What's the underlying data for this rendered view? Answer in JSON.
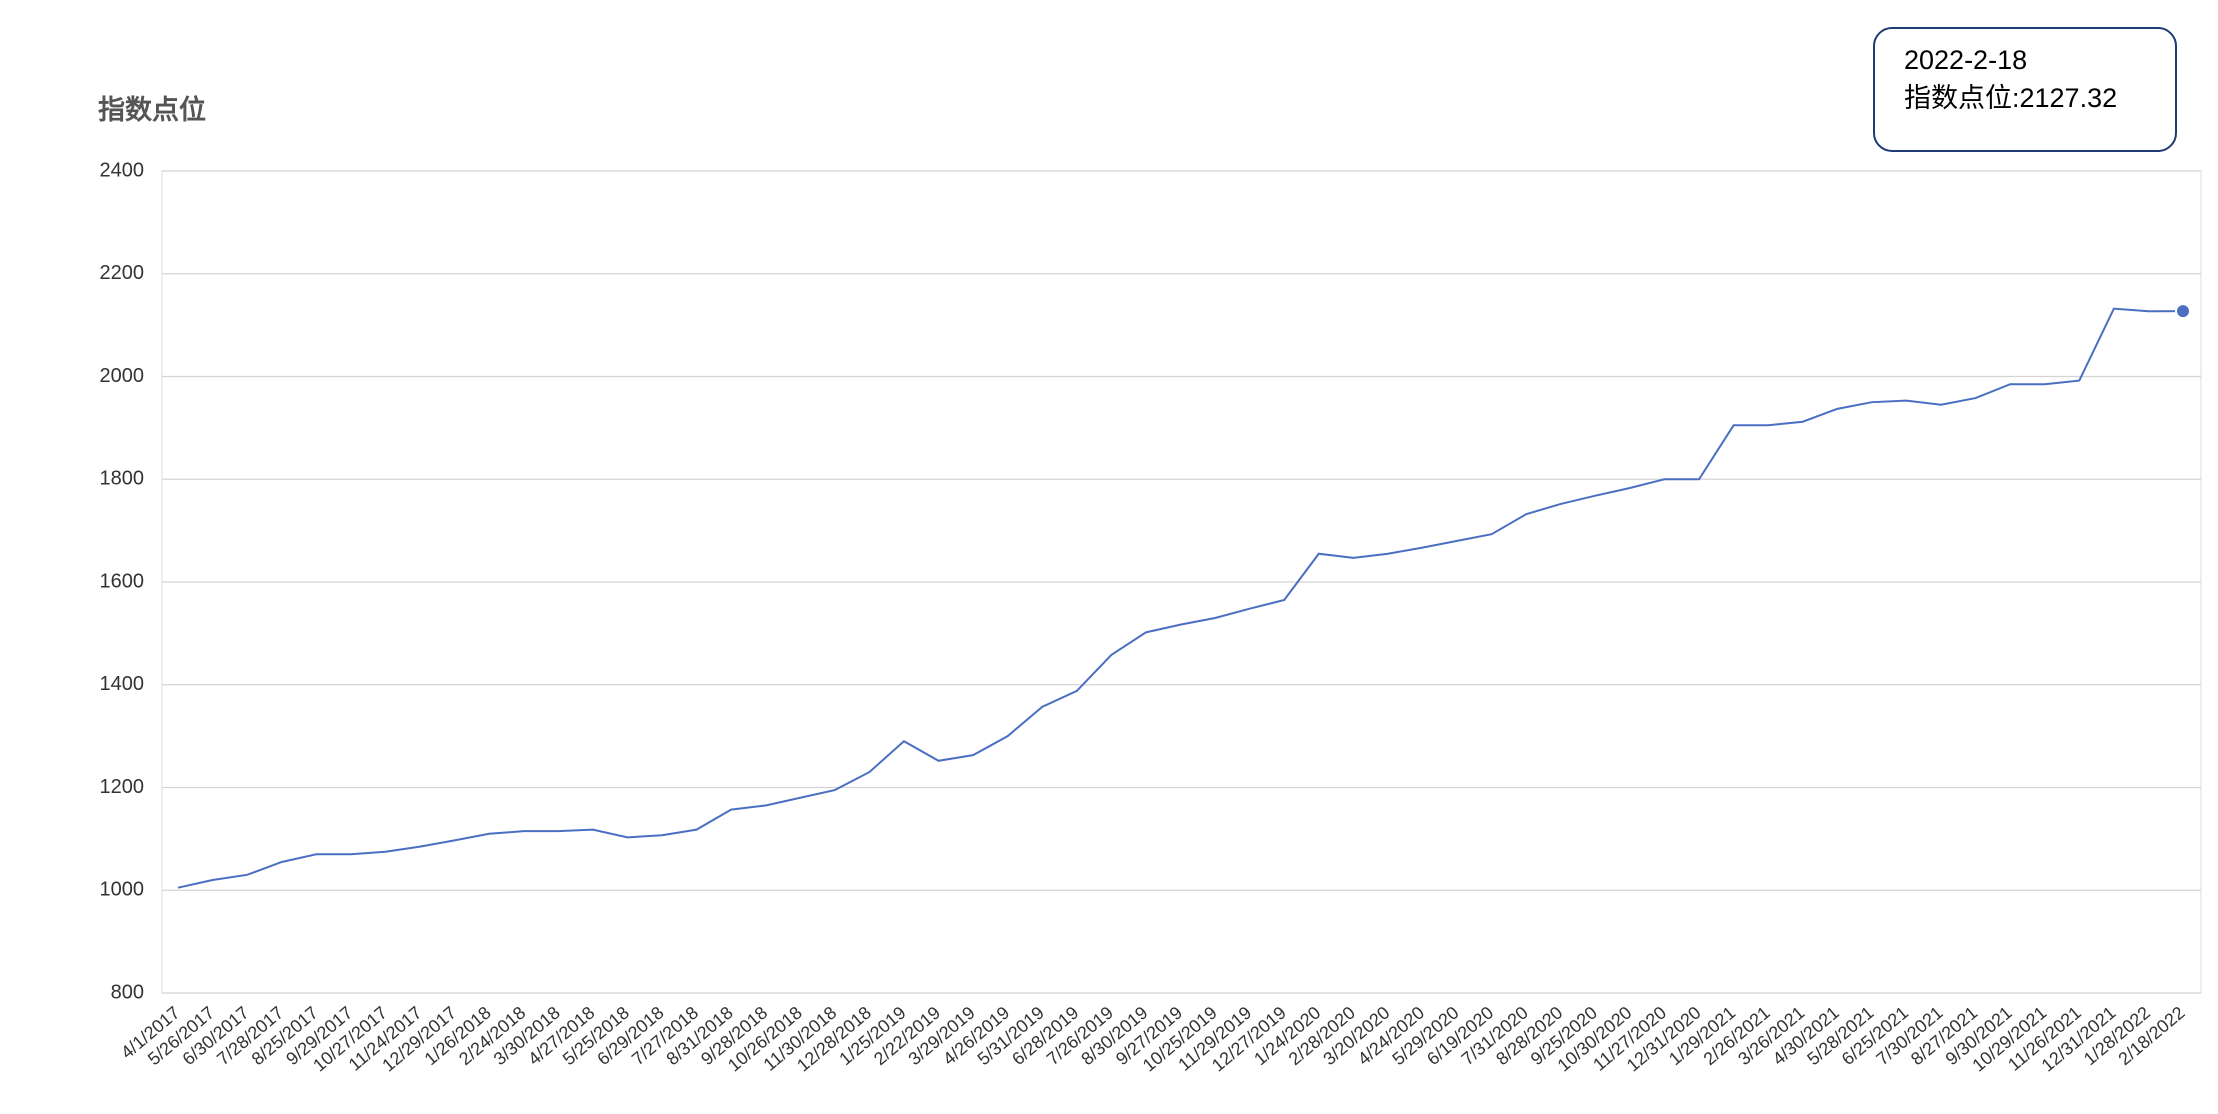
{
  "chart_data": {
    "type": "line",
    "y_label": "指数点位",
    "categories": [
      "4/1/2017",
      "5/26/2017",
      "6/30/2017",
      "7/28/2017",
      "8/25/2017",
      "9/29/2017",
      "10/27/2017",
      "11/24/2017",
      "12/29/2017",
      "1/26/2018",
      "2/24/2018",
      "3/30/2018",
      "4/27/2018",
      "5/25/2018",
      "6/29/2018",
      "7/27/2018",
      "8/31/2018",
      "9/28/2018",
      "10/26/2018",
      "11/30/2018",
      "12/28/2018",
      "1/25/2019",
      "2/22/2019",
      "3/29/2019",
      "4/26/2019",
      "5/31/2019",
      "6/28/2019",
      "7/26/2019",
      "8/30/2019",
      "9/27/2019",
      "10/25/2019",
      "11/29/2019",
      "12/27/2019",
      "1/24/2020",
      "2/28/2020",
      "3/20/2020",
      "4/24/2020",
      "5/29/2020",
      "6/19/2020",
      "7/31/2020",
      "8/28/2020",
      "9/25/2020",
      "10/30/2020",
      "11/27/2020",
      "12/31/2020",
      "1/29/2021",
      "2/26/2021",
      "3/26/2021",
      "4/30/2021",
      "5/28/2021",
      "6/25/2021",
      "7/30/2021",
      "8/27/2021",
      "9/30/2021",
      "10/29/2021",
      "11/26/2021",
      "12/31/2021",
      "1/28/2022",
      "2/18/2022"
    ],
    "series": [
      {
        "name": "指数点位",
        "color": "#4a6fc2",
        "values": [
          1005,
          1020,
          1030,
          1055,
          1070,
          1070,
          1075,
          1085,
          1097,
          1110,
          1115,
          1115,
          1118,
          1103,
          1107,
          1118,
          1157,
          1165,
          1180,
          1195,
          1230,
          1290,
          1252,
          1263,
          1300,
          1357,
          1388,
          1458,
          1502,
          1517,
          1530,
          1548,
          1565,
          1655,
          1647,
          1655,
          1667,
          1680,
          1693,
          1732,
          1752,
          1768,
          1783,
          1800,
          1800,
          1905,
          1905,
          1912,
          1937,
          1950,
          1953,
          1945,
          1958,
          1985,
          1985,
          1992,
          2132,
          2127,
          2127.32
        ]
      }
    ],
    "ylim": [
      800,
      2400
    ],
    "yticks": [
      800,
      1000,
      1200,
      1400,
      1600,
      1800,
      2000,
      2200,
      2400
    ],
    "grid": true,
    "tooltip": {
      "title": "2022-2-18",
      "text": "指数点位:2127.32"
    }
  }
}
